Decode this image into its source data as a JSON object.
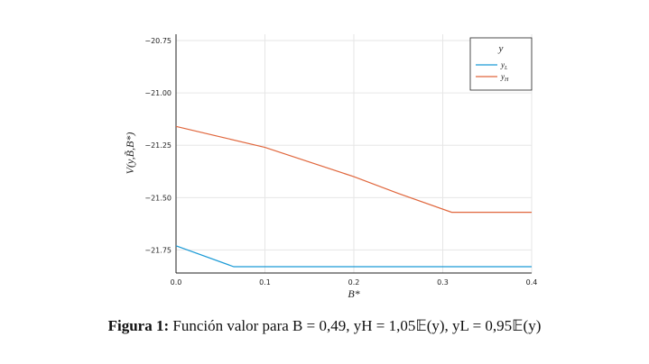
{
  "chart_data": {
    "type": "line",
    "y_label": "V(y,B̃,B*)",
    "x_label": "B*",
    "xlim": [
      0,
      0.4
    ],
    "ylim": [
      -21.86,
      -20.72
    ],
    "xticks": [
      {
        "value": 0,
        "label": "0.0"
      },
      0.1,
      0.2,
      0.3,
      0.4
    ],
    "yticks": [
      {
        "value": -20.75,
        "label": "−20.75"
      },
      {
        "value": -21.0,
        "label": "−21.00"
      },
      {
        "value": -21.25,
        "label": "−21.25"
      },
      {
        "value": -21.5,
        "label": "−21.50"
      },
      {
        "value": -21.75,
        "label": "−21.75"
      }
    ],
    "grid": true,
    "legend_title": "y",
    "legend": "top-right",
    "series": [
      {
        "name": "yL",
        "color": "#1a9ad6",
        "x": [
          0,
          0.065,
          0.4
        ],
        "values": [
          -21.73,
          -21.83,
          -21.83
        ]
      },
      {
        "name": "yH",
        "color": "#e0663c",
        "x": [
          0,
          0.05,
          0.1,
          0.15,
          0.2,
          0.25,
          0.31,
          0.4
        ],
        "values": [
          -21.16,
          -21.21,
          -21.26,
          -21.33,
          -21.4,
          -21.48,
          -21.57,
          -21.57
        ]
      }
    ]
  },
  "caption": {
    "label": "Figura 1:",
    "text": "Función valor para B = 0,49, yH = 1,05𝔼(y), yL = 0,95𝔼(y)"
  }
}
